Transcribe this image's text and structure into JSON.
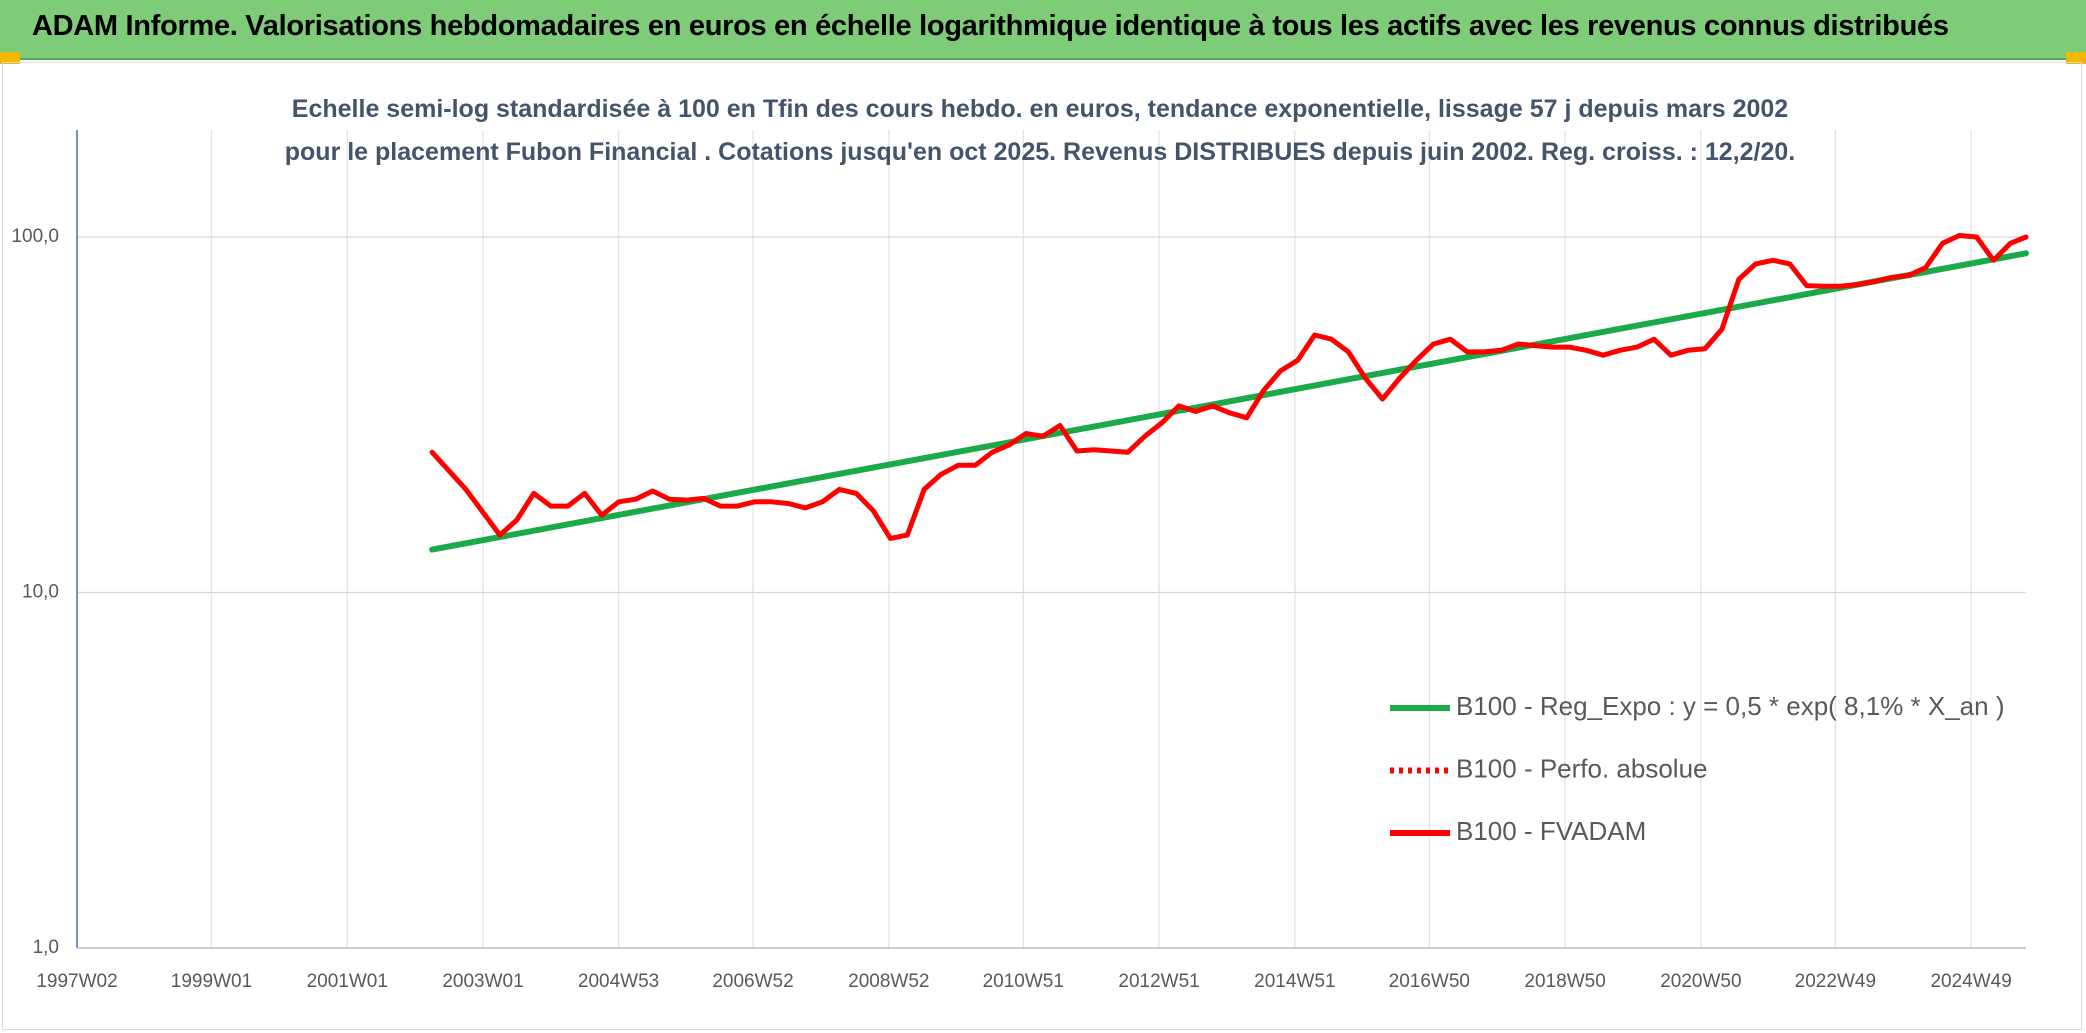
{
  "chart_data": {
    "type": "line",
    "title": "ADAM Informe. Valorisations hebdomadaires en euros en échelle logarithmique identique à tous les actifs avec les revenus connus distribués",
    "subtitle": "Echelle semi-log standardisée à 100 en Tfin des cours hebdo. en euros, tendance exponentielle, lissage 57 j depuis mars 2002 pour le placement Fubon Financial . Cotations jusqu'en oct 2025. Revenus DISTRIBUES depuis juin 2002. Reg. croiss. : 12,2/20.",
    "log_scale": true,
    "grid": true,
    "legend": "lower right",
    "xlim": [
      "1997W02",
      "2025W39"
    ],
    "xticks": [
      "1997W02",
      "1999W01",
      "2001W01",
      "2003W01",
      "2004W53",
      "2006W52",
      "2008W52",
      "2010W51",
      "2012W51",
      "2014W51",
      "2016W50",
      "2018W50",
      "2020W50",
      "2022W49",
      "2024W49"
    ],
    "ylim": [
      1,
      200
    ],
    "yticks": [
      {
        "value": 1,
        "label": "1,0"
      },
      {
        "value": 10,
        "label": "10,0"
      },
      {
        "value": 100,
        "label": "100,0"
      }
    ],
    "series": [
      {
        "name": "B100 - Reg_Expo : y = 0,5 * exp( 8,1% *  X_an )",
        "color": "#1aaa4a",
        "style": "solid",
        "x": [
          "2002W14",
          "2025W39"
        ],
        "values": [
          13.2,
          90
        ]
      },
      {
        "name": "B100 - Perfo. absolue",
        "color": "#ff0000",
        "style": "dotted",
        "x": [
          "2002W14",
          "2002W27",
          "2002W40",
          "2003W01",
          "2003W14",
          "2003W27",
          "2003W40",
          "2004W01",
          "2004W14",
          "2004W27",
          "2004W40",
          "2005W01",
          "2005W14",
          "2005W27",
          "2005W40",
          "2006W01",
          "2006W14",
          "2006W27",
          "2006W40",
          "2007W01",
          "2007W14",
          "2007W27",
          "2007W40",
          "2008W01",
          "2008W14",
          "2008W27",
          "2008W40",
          "2009W01",
          "2009W14",
          "2009W27",
          "2009W40",
          "2010W01",
          "2010W14",
          "2010W27",
          "2010W40",
          "2011W01",
          "2011W14",
          "2011W27",
          "2011W40",
          "2012W01",
          "2012W14",
          "2012W27",
          "2012W40",
          "2013W01",
          "2013W14",
          "2013W27",
          "2013W40",
          "2014W01",
          "2014W14",
          "2014W27",
          "2014W40",
          "2015W01",
          "2015W14",
          "2015W27",
          "2015W40",
          "2016W01",
          "2016W14",
          "2016W27",
          "2016W40",
          "2017W01",
          "2017W14",
          "2017W27",
          "2017W40",
          "2018W01",
          "2018W14",
          "2018W27",
          "2018W40",
          "2019W01",
          "2019W14",
          "2019W27",
          "2019W40",
          "2020W01",
          "2020W14",
          "2020W27",
          "2020W40",
          "2021W01",
          "2021W14",
          "2021W27",
          "2021W40",
          "2022W01",
          "2022W14",
          "2022W27",
          "2022W40",
          "2023W01",
          "2023W14",
          "2023W27",
          "2023W40",
          "2024W01",
          "2024W14",
          "2024W27",
          "2024W40",
          "2025W01",
          "2025W14",
          "2025W27",
          "2025W39"
        ],
        "values": [
          24.8,
          22,
          19.5,
          16.8,
          14.5,
          16,
          19,
          17.5,
          17.5,
          19,
          16.5,
          18,
          18.3,
          19.3,
          18.3,
          18.2,
          18.4,
          17.5,
          17.5,
          18,
          18,
          17.8,
          17.3,
          18,
          19.5,
          19,
          17,
          14.2,
          14.5,
          19.5,
          21.5,
          22.8,
          22.8,
          24.8,
          26,
          28,
          27.5,
          29.5,
          25,
          25.2,
          25,
          24.8,
          27.5,
          30,
          33.5,
          32.3,
          33.5,
          32,
          31,
          37,
          42,
          45,
          53,
          51.6,
          47.5,
          40,
          35,
          40,
          45,
          50,
          51.6,
          47.5,
          47.5,
          48,
          50,
          49.5,
          49,
          49,
          48,
          46.5,
          48,
          49,
          51.6,
          46.5,
          48,
          48.5,
          55,
          76,
          84,
          86,
          84,
          73,
          72.7,
          72.7,
          73.5,
          75,
          77,
          78,
          82,
          96,
          101,
          100,
          86,
          96,
          100
        ]
      },
      {
        "name": "B100 - FVADAM",
        "color": "#ff0000",
        "style": "solid",
        "x": [
          "2002W14",
          "2002W27",
          "2002W40",
          "2003W01",
          "2003W14",
          "2003W27",
          "2003W40",
          "2004W01",
          "2004W14",
          "2004W27",
          "2004W40",
          "2005W01",
          "2005W14",
          "2005W27",
          "2005W40",
          "2006W01",
          "2006W14",
          "2006W27",
          "2006W40",
          "2007W01",
          "2007W14",
          "2007W27",
          "2007W40",
          "2008W01",
          "2008W14",
          "2008W27",
          "2008W40",
          "2009W01",
          "2009W14",
          "2009W27",
          "2009W40",
          "2010W01",
          "2010W14",
          "2010W27",
          "2010W40",
          "2011W01",
          "2011W14",
          "2011W27",
          "2011W40",
          "2012W01",
          "2012W14",
          "2012W27",
          "2012W40",
          "2013W01",
          "2013W14",
          "2013W27",
          "2013W40",
          "2014W01",
          "2014W14",
          "2014W27",
          "2014W40",
          "2015W01",
          "2015W14",
          "2015W27",
          "2015W40",
          "2016W01",
          "2016W14",
          "2016W27",
          "2016W40",
          "2017W01",
          "2017W14",
          "2017W27",
          "2017W40",
          "2018W01",
          "2018W14",
          "2018W27",
          "2018W40",
          "2019W01",
          "2019W14",
          "2019W27",
          "2019W40",
          "2020W01",
          "2020W14",
          "2020W27",
          "2020W40",
          "2021W01",
          "2021W14",
          "2021W27",
          "2021W40",
          "2022W01",
          "2022W14",
          "2022W27",
          "2022W40",
          "2023W01",
          "2023W14",
          "2023W27",
          "2023W40",
          "2024W01",
          "2024W14",
          "2024W27",
          "2024W40",
          "2025W01",
          "2025W14",
          "2025W27",
          "2025W39"
        ],
        "values": [
          24.8,
          22,
          19.5,
          16.8,
          14.5,
          16,
          19,
          17.5,
          17.5,
          19,
          16.5,
          18,
          18.3,
          19.3,
          18.3,
          18.2,
          18.4,
          17.5,
          17.5,
          18,
          18,
          17.8,
          17.3,
          18,
          19.5,
          19,
          17,
          14.2,
          14.5,
          19.5,
          21.5,
          22.8,
          22.8,
          24.8,
          26,
          28,
          27.5,
          29.5,
          25,
          25.2,
          25,
          24.8,
          27.5,
          30,
          33.5,
          32.3,
          33.5,
          32,
          31,
          37,
          42,
          45,
          53,
          51.6,
          47.5,
          40,
          35,
          40,
          45,
          50,
          51.6,
          47.5,
          47.5,
          48,
          50,
          49.5,
          49,
          49,
          48,
          46.5,
          48,
          49,
          51.6,
          46.5,
          48,
          48.5,
          55,
          76,
          84,
          86,
          84,
          73,
          72.7,
          72.7,
          73.5,
          75,
          77,
          78,
          82,
          96,
          101,
          100,
          86,
          96,
          100
        ]
      }
    ]
  }
}
